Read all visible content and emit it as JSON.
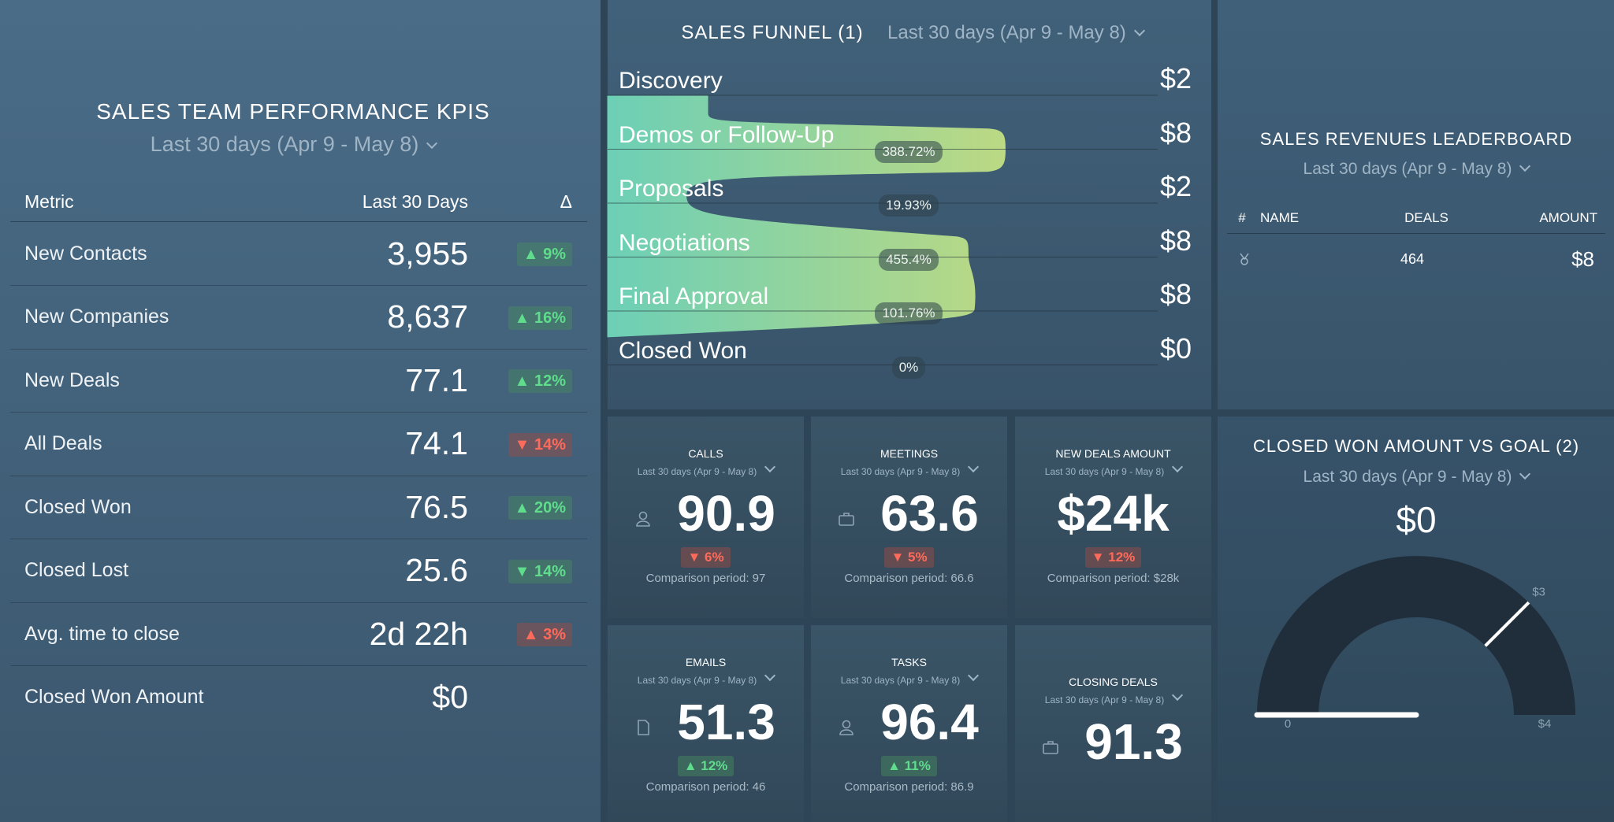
{
  "kpi": {
    "title": "SALES TEAM PERFORMANCE KPIS",
    "date_range": "Last 30 days (Apr 9 - May 8)",
    "columns": [
      "Metric",
      "Last 30 Days",
      "Δ"
    ],
    "rows": [
      {
        "metric": "New Contacts",
        "value": "3,955",
        "change": "▲ 9%",
        "good": true
      },
      {
        "metric": "New Companies",
        "value": "8,637",
        "change": "▲ 16%",
        "good": true
      },
      {
        "metric": "New Deals",
        "value": "77.1",
        "change": "▲ 12%",
        "good": true
      },
      {
        "metric": "All Deals",
        "value": "74.1",
        "change": "▼ 14%",
        "good": false
      },
      {
        "metric": "Closed Won",
        "value": "76.5",
        "change": "▲ 20%",
        "good": true
      },
      {
        "metric": "Closed Lost",
        "value": "25.6",
        "change": "▼ 14%",
        "good": true
      },
      {
        "metric": "Avg. time to close",
        "value": "2d 22h",
        "change": "▲ 3%",
        "good": false
      },
      {
        "metric": "Closed Won Amount",
        "value": "$0"
      }
    ]
  },
  "funnel": {
    "title": "SALES FUNNEL (1)",
    "date_range": "Last 30 days (Apr 9 - May 8)",
    "stages": [
      {
        "name": "Discovery",
        "amount": "$2"
      },
      {
        "name": "Demos or Follow-Up",
        "amount": "$8",
        "conversion": "388.72%"
      },
      {
        "name": "Proposals",
        "amount": "$2",
        "conversion": "19.93%"
      },
      {
        "name": "Negotiations",
        "amount": "$8",
        "conversion": "455.4%"
      },
      {
        "name": "Final Approval",
        "amount": "$8",
        "conversion": "101.76%"
      },
      {
        "name": "Closed Won",
        "amount": "$0",
        "conversion": "0%"
      }
    ]
  },
  "leaderboard": {
    "title": "SALES REVENUES LEADERBOARD",
    "date_range": "Last 30 days (Apr 9 - May 8)",
    "columns": [
      "#",
      "NAME",
      "DEALS",
      "AMOUNT"
    ],
    "rows": [
      {
        "deals": "464",
        "amount": "$8"
      }
    ]
  },
  "tiles": [
    {
      "title": "CALLS",
      "date_range": "Last 30 days (Apr 9 - May 8)",
      "value": "90.9",
      "change": "▼ 6%",
      "good": false,
      "comparison": "Comparison period: 97",
      "icon": "person"
    },
    {
      "title": "MEETINGS",
      "date_range": "Last 30 days (Apr 9 - May 8)",
      "value": "63.6",
      "change": "▼ 5%",
      "good": false,
      "comparison": "Comparison period: 66.6",
      "icon": "briefcase"
    },
    {
      "title": "NEW DEALS AMOUNT",
      "date_range": "Last 30 days (Apr 9 - May 8)",
      "value": "$24k",
      "change": "▼ 12%",
      "good": false,
      "comparison": "Comparison period: $28k"
    },
    {
      "title": "EMAILS",
      "date_range": "Last 30 days (Apr 9 - May 8)",
      "value": "51.3",
      "change": "▲ 12%",
      "good": true,
      "comparison": "Comparison period: 46",
      "icon": "document"
    },
    {
      "title": "TASKS",
      "date_range": "Last 30 days (Apr 9 - May 8)",
      "value": "96.4",
      "change": "▲ 11%",
      "good": true,
      "comparison": "Comparison period: 86.9",
      "icon": "person"
    },
    {
      "title": "CLOSING DEALS",
      "date_range": "Last 30 days (Apr 9 - May 8)",
      "value": "91.3",
      "icon": "briefcase"
    }
  ],
  "gauge": {
    "title": "CLOSED WON AMOUNT VS GOAL (2)",
    "date_range": "Last 30 days (Apr 9 - May 8)",
    "value_label": "$0",
    "value": 0,
    "target": 3,
    "range": [
      0,
      4
    ],
    "ticks": [
      {
        "value": 0,
        "label": "0"
      },
      {
        "value": 3,
        "label": "$3"
      },
      {
        "value": 4,
        "label": "$4"
      }
    ]
  }
}
